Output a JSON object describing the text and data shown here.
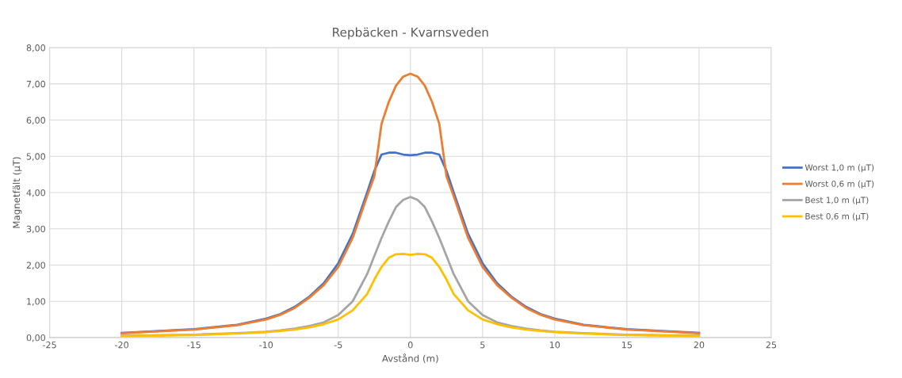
{
  "chart_data": {
    "type": "line",
    "title": "Repbäcken - Kvarnsveden",
    "xlabel": "Avstånd (m)",
    "ylabel": "Magnetfält (µT)",
    "x": [
      -20,
      -15,
      -12,
      -10,
      -9,
      -8,
      -7,
      -6,
      -5,
      -4,
      -3,
      -2.5,
      -2,
      -1.5,
      -1,
      -0.5,
      0,
      0.5,
      1,
      1.5,
      2,
      2.5,
      3,
      4,
      5,
      6,
      7,
      8,
      9,
      10,
      12,
      15,
      20
    ],
    "series": [
      {
        "name": "Worst 1,0 m (µT)",
        "color": "#4472c4",
        "values": [
          0.13,
          0.23,
          0.35,
          0.52,
          0.65,
          0.85,
          1.13,
          1.5,
          2.05,
          2.86,
          4.0,
          4.6,
          5.05,
          5.1,
          5.1,
          5.05,
          5.03,
          5.05,
          5.1,
          5.1,
          5.05,
          4.6,
          4.0,
          2.86,
          2.05,
          1.5,
          1.13,
          0.85,
          0.65,
          0.52,
          0.35,
          0.23,
          0.13
        ]
      },
      {
        "name": "Worst 0,6 m (µT)",
        "color": "#ed7d31",
        "values": [
          0.12,
          0.22,
          0.34,
          0.5,
          0.63,
          0.82,
          1.1,
          1.45,
          1.95,
          2.75,
          3.9,
          4.45,
          5.9,
          6.5,
          6.95,
          7.2,
          7.28,
          7.2,
          6.95,
          6.5,
          5.9,
          4.45,
          3.9,
          2.75,
          1.95,
          1.45,
          1.1,
          0.82,
          0.63,
          0.5,
          0.34,
          0.22,
          0.12
        ]
      },
      {
        "name": "Best 1,0 m (µT)",
        "color": "#a5a5a5",
        "values": [
          0.05,
          0.08,
          0.12,
          0.16,
          0.2,
          0.25,
          0.32,
          0.42,
          0.62,
          1.0,
          1.75,
          2.25,
          2.75,
          3.2,
          3.6,
          3.8,
          3.88,
          3.8,
          3.6,
          3.2,
          2.75,
          2.25,
          1.75,
          1.0,
          0.62,
          0.42,
          0.32,
          0.25,
          0.2,
          0.16,
          0.12,
          0.08,
          0.05
        ]
      },
      {
        "name": "Best 0,6 m (µT)",
        "color": "#ffc000",
        "values": [
          0.04,
          0.07,
          0.11,
          0.15,
          0.18,
          0.22,
          0.28,
          0.37,
          0.5,
          0.75,
          1.2,
          1.6,
          1.95,
          2.2,
          2.3,
          2.31,
          2.28,
          2.31,
          2.3,
          2.2,
          1.95,
          1.6,
          1.2,
          0.75,
          0.5,
          0.37,
          0.28,
          0.22,
          0.18,
          0.15,
          0.11,
          0.07,
          0.04
        ]
      }
    ],
    "xlim": [
      -25,
      25
    ],
    "xticks": [
      -25,
      -20,
      -15,
      -10,
      -5,
      0,
      5,
      10,
      15,
      20,
      25
    ],
    "ylim": [
      0,
      8
    ],
    "yticks": [
      {
        "value": 0,
        "label": "0,00"
      },
      {
        "value": 1,
        "label": "1,00"
      },
      {
        "value": 2,
        "label": "2,00"
      },
      {
        "value": 3,
        "label": "3,00"
      },
      {
        "value": 4,
        "label": "4,00"
      },
      {
        "value": 5,
        "label": "5,00"
      },
      {
        "value": 6,
        "label": "6,00"
      },
      {
        "value": 7,
        "label": "7,00"
      },
      {
        "value": 8,
        "label": "8,00"
      }
    ],
    "grid": true,
    "legend": "right",
    "marker": "none",
    "line_style": "solid"
  }
}
